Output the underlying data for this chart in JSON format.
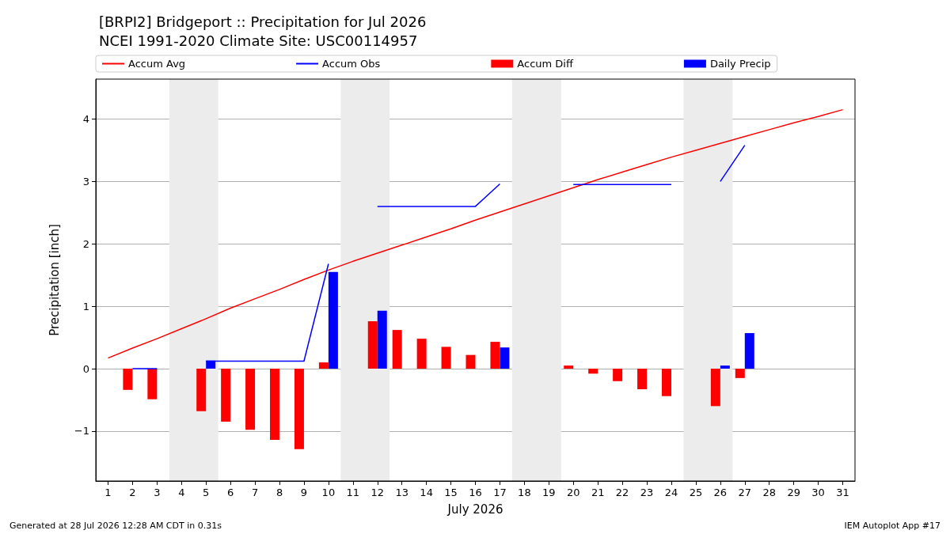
{
  "chart_data": {
    "type": "bar",
    "title": "[BRPI2] Bridgeport :: Precipitation for Jul 2026",
    "subtitle": "NCEI 1991-2020 Climate Site: USC00114957",
    "xlabel": "July 2026",
    "ylabel": "Precipitation [inch]",
    "x": [
      1,
      2,
      3,
      4,
      5,
      6,
      7,
      8,
      9,
      10,
      11,
      12,
      13,
      14,
      15,
      16,
      17,
      18,
      19,
      20,
      21,
      22,
      23,
      24,
      25,
      26,
      27,
      28,
      29,
      30,
      31
    ],
    "series": [
      {
        "name": "Accum Avg",
        "type": "line",
        "color": "#ff0000",
        "values": [
          0.17,
          0.33,
          0.48,
          0.64,
          0.8,
          0.97,
          1.12,
          1.27,
          1.43,
          1.58,
          1.72,
          1.85,
          1.98,
          2.11,
          2.24,
          2.38,
          2.51,
          2.64,
          2.77,
          2.9,
          3.03,
          3.15,
          3.27,
          3.39,
          3.5,
          3.61,
          3.72,
          3.83,
          3.94,
          4.04,
          4.15
        ]
      },
      {
        "name": "Accum Obs",
        "type": "line",
        "color": "#0000ff",
        "values": [
          null,
          0,
          0,
          null,
          0.12,
          0.12,
          0.12,
          0.12,
          0.12,
          1.68,
          null,
          2.6,
          2.6,
          2.6,
          2.6,
          2.6,
          2.96,
          null,
          null,
          2.95,
          2.95,
          2.95,
          2.95,
          2.95,
          null,
          3.0,
          3.58,
          null,
          null,
          null,
          null
        ]
      },
      {
        "name": "Accum Diff",
        "color": "#ff0000",
        "values": [
          null,
          -0.34,
          -0.49,
          null,
          -0.68,
          -0.85,
          -0.98,
          -1.14,
          -1.29,
          0.1,
          null,
          0.76,
          0.62,
          0.48,
          0.35,
          0.22,
          0.43,
          null,
          null,
          0.05,
          -0.08,
          -0.2,
          -0.33,
          -0.44,
          null,
          -0.6,
          -0.15,
          null,
          null,
          null,
          null
        ]
      },
      {
        "name": "Daily Precip",
        "color": "#0000ff",
        "values": [
          null,
          0,
          0,
          null,
          0.13,
          0,
          0,
          0,
          0,
          1.55,
          null,
          0.93,
          0,
          0,
          0,
          0,
          0.34,
          null,
          null,
          0,
          0,
          0,
          0,
          0,
          null,
          0.05,
          0.57,
          null,
          null,
          null,
          null
        ]
      }
    ],
    "xlim": [
      0.5,
      31.5
    ],
    "xticks": [
      1,
      2,
      3,
      4,
      5,
      6,
      7,
      8,
      9,
      10,
      11,
      12,
      13,
      14,
      15,
      16,
      17,
      18,
      19,
      20,
      21,
      22,
      23,
      24,
      25,
      26,
      27,
      28,
      29,
      30,
      31
    ],
    "ylim": [
      -1.8,
      4.64
    ],
    "yticks": [
      {
        "value": -1,
        "label": "−1"
      },
      0,
      1,
      2,
      3,
      4
    ],
    "bands": [
      {
        "axis": "x",
        "from": 3.5,
        "to": 5.5,
        "color": "#ececec"
      },
      {
        "axis": "x",
        "from": 10.5,
        "to": 12.5,
        "color": "#ececec"
      },
      {
        "axis": "x",
        "from": 17.5,
        "to": 19.5,
        "color": "#ececec"
      },
      {
        "axis": "x",
        "from": 24.5,
        "to": 26.5,
        "color": "#ececec"
      }
    ],
    "grid": "y",
    "legend": "top",
    "marker": "none",
    "line_style": "solid",
    "annotations": [
      "Generated at 28 Jul 2026 12:28 AM CDT in 0.31s",
      "IEM Autoplot App #17"
    ]
  }
}
